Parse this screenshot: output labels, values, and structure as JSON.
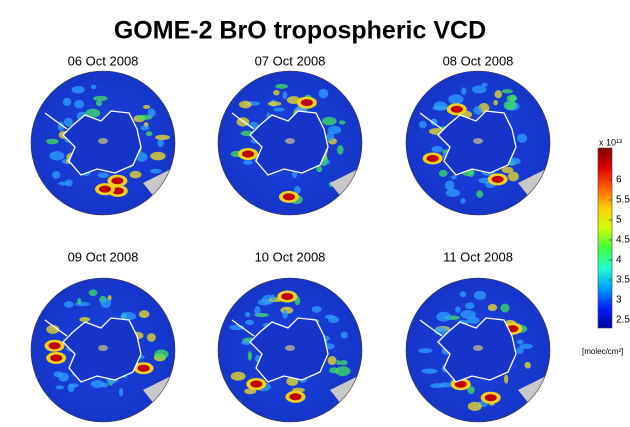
{
  "title": "GOME-2 BrO tropospheric VCD",
  "panels": [
    "06 Oct 2008",
    "07 Oct 2008",
    "08 Oct 2008",
    "09 Oct 2008",
    "10 Oct 2008",
    "11 Oct 2008"
  ],
  "colorbar": {
    "multiplier": "x 10¹³",
    "unit": "[molec/cm²]",
    "range": [
      2.3,
      6.8
    ],
    "ticks": [
      6,
      5.5,
      5,
      4.5,
      4,
      3.5,
      3,
      2.5
    ],
    "colors": [
      "#0000a0",
      "#0020ff",
      "#00a0ff",
      "#20ffd0",
      "#40ff40",
      "#d0ff00",
      "#ffd000",
      "#ff6000",
      "#e00000",
      "#800000"
    ]
  }
}
